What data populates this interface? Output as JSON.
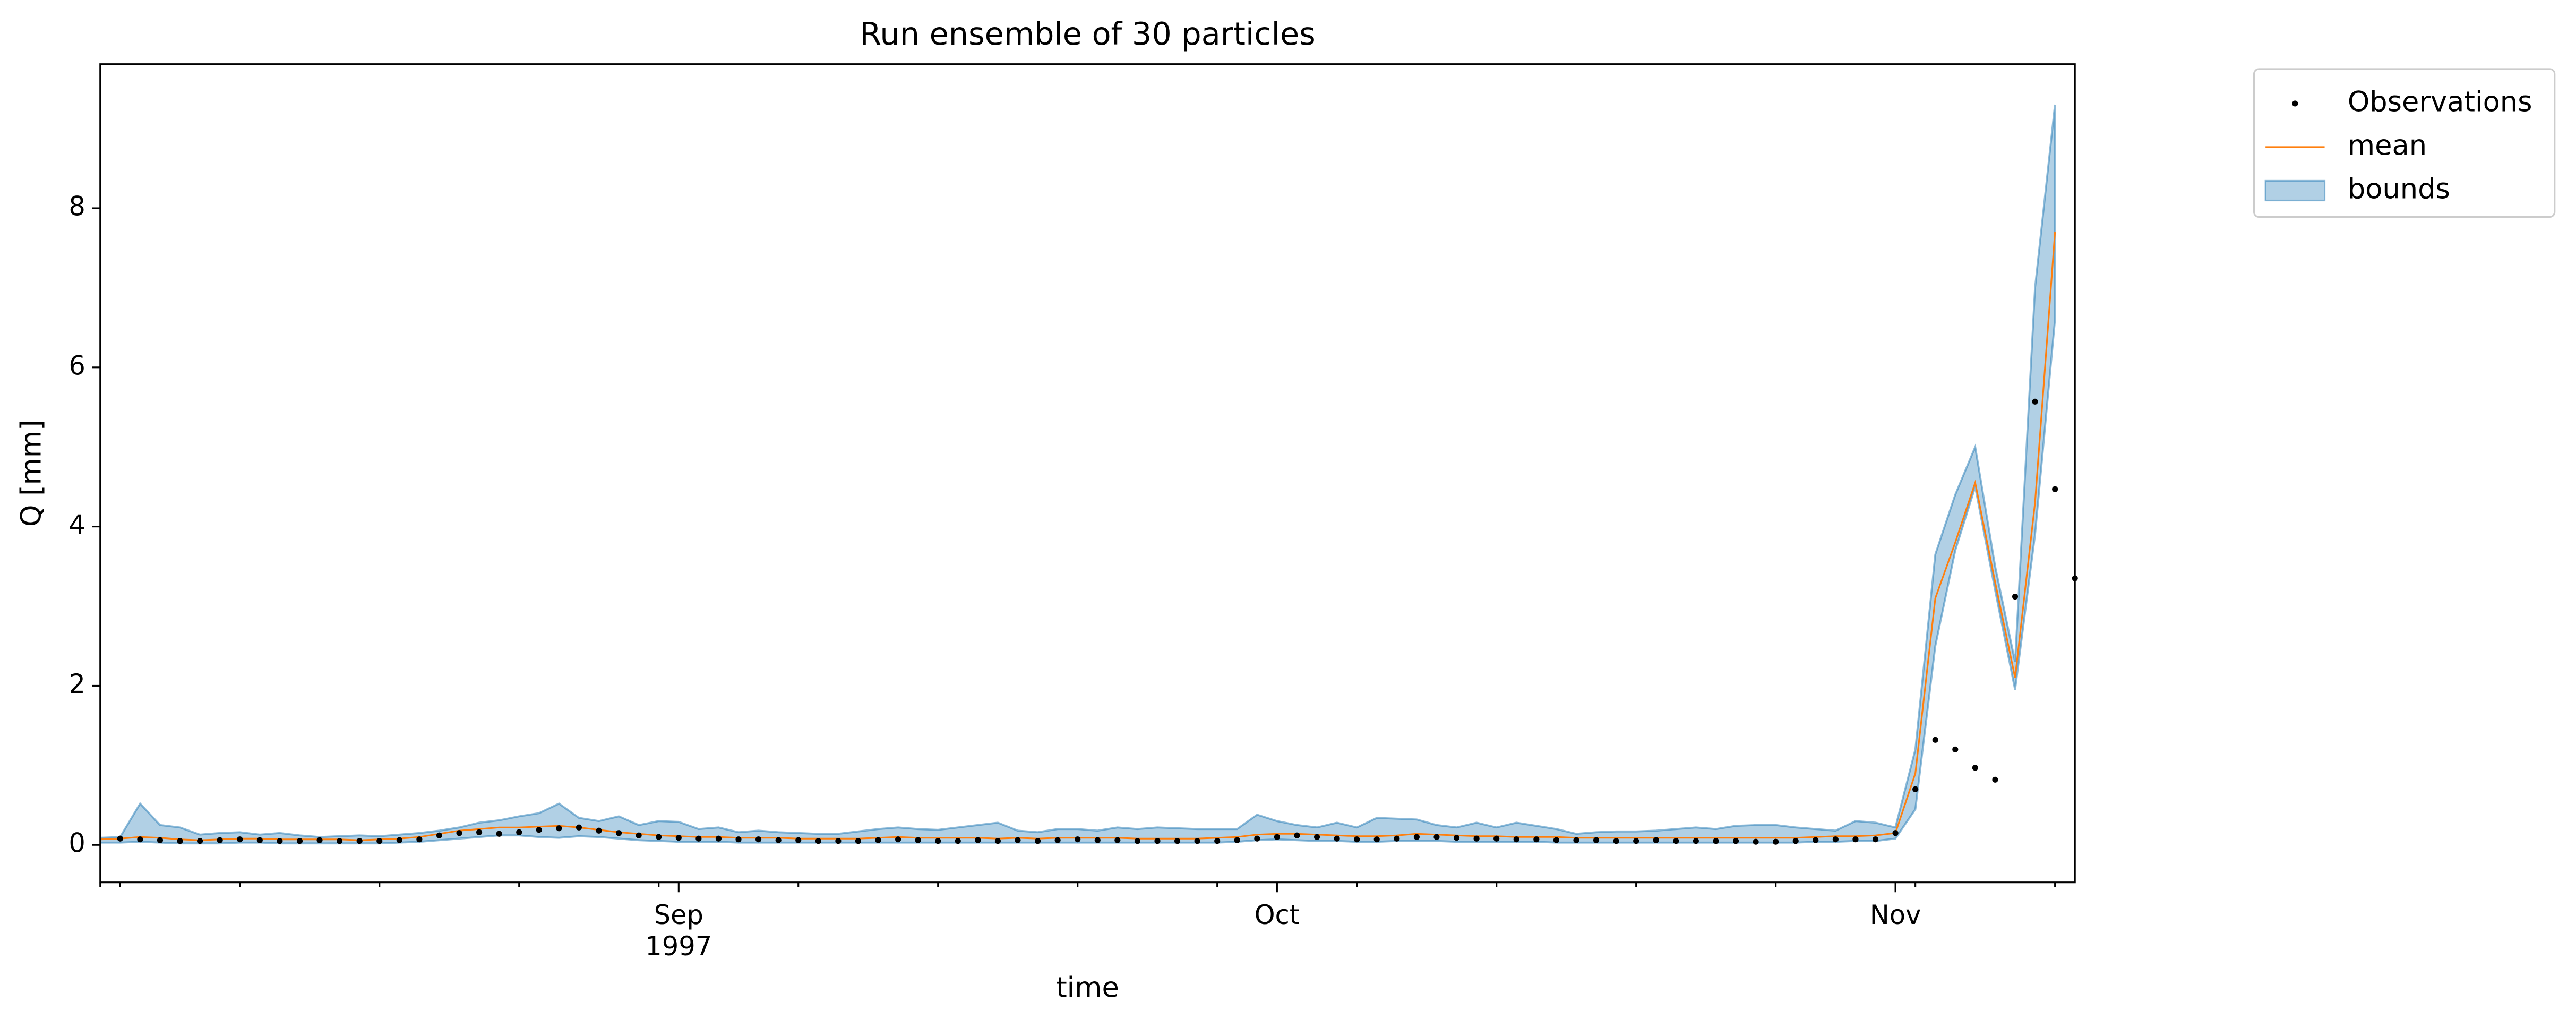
{
  "chart_data": {
    "type": "line",
    "title": "Run ensemble of 30 particles",
    "x_label": "time",
    "y_label": "Q [mm]",
    "categories": [
      null,
      null,
      null,
      null,
      null,
      null,
      null,
      null,
      null,
      null,
      null,
      null,
      null,
      null,
      null,
      null,
      null,
      null,
      null,
      null,
      null,
      null,
      null,
      null,
      null,
      null,
      null,
      null,
      null,
      "Sep",
      null,
      null,
      null,
      null,
      null,
      null,
      null,
      null,
      null,
      null,
      null,
      null,
      null,
      null,
      null,
      null,
      null,
      null,
      null,
      null,
      null,
      null,
      null,
      null,
      null,
      null,
      null,
      null,
      null,
      "Oct",
      null,
      null,
      null,
      null,
      null,
      null,
      null,
      null,
      null,
      null,
      null,
      null,
      null,
      null,
      null,
      null,
      null,
      null,
      null,
      null,
      null,
      null,
      null,
      null,
      null,
      null,
      null,
      null,
      null,
      null,
      "Nov",
      null,
      null,
      null,
      null,
      null,
      null,
      null,
      null,
      null
    ],
    "year_label": "1997",
    "ylim": [
      -0.47,
      9.81
    ],
    "yticks": [
      0,
      2,
      4,
      6,
      8
    ],
    "legend": "outside upper right",
    "series": [
      {
        "name": "Observations",
        "color": "#000000",
        "style": "dots",
        "values": [
          null,
          0.08,
          0.07,
          0.06,
          0.05,
          0.05,
          0.06,
          0.07,
          0.06,
          0.05,
          0.05,
          0.06,
          0.05,
          0.05,
          0.05,
          0.06,
          0.07,
          0.12,
          0.15,
          0.16,
          0.14,
          0.16,
          0.19,
          0.21,
          0.22,
          0.18,
          0.15,
          0.12,
          0.1,
          0.09,
          0.08,
          0.08,
          0.07,
          0.07,
          0.06,
          0.06,
          0.05,
          0.05,
          0.05,
          0.06,
          0.07,
          0.06,
          0.05,
          0.05,
          0.06,
          0.05,
          0.06,
          0.05,
          0.06,
          0.07,
          0.06,
          0.06,
          0.05,
          0.05,
          0.05,
          0.05,
          0.05,
          0.06,
          0.08,
          0.1,
          0.12,
          0.1,
          0.08,
          0.07,
          0.07,
          0.08,
          0.1,
          0.1,
          0.09,
          0.08,
          0.08,
          0.07,
          0.07,
          0.06,
          0.06,
          0.06,
          0.05,
          0.05,
          0.06,
          0.05,
          0.05,
          0.05,
          0.05,
          0.04,
          0.04,
          0.05,
          0.06,
          0.07,
          0.07,
          0.07,
          0.15,
          0.7,
          1.32,
          1.2,
          0.97,
          0.82,
          3.12,
          5.57,
          4.47,
          3.35
        ]
      },
      {
        "name": "mean",
        "color": "#ff7f0e",
        "style": "line",
        "values": [
          0.07,
          0.08,
          0.1,
          0.09,
          0.07,
          0.06,
          0.07,
          0.08,
          0.08,
          0.07,
          0.07,
          0.07,
          0.07,
          0.06,
          0.07,
          0.08,
          0.1,
          0.14,
          0.18,
          0.2,
          0.22,
          0.22,
          0.23,
          0.24,
          0.22,
          0.19,
          0.16,
          0.14,
          0.12,
          0.11,
          0.1,
          0.1,
          0.09,
          0.09,
          0.09,
          0.08,
          0.08,
          0.08,
          0.08,
          0.09,
          0.1,
          0.09,
          0.09,
          0.09,
          0.09,
          0.08,
          0.09,
          0.08,
          0.09,
          0.09,
          0.09,
          0.09,
          0.08,
          0.08,
          0.08,
          0.08,
          0.09,
          0.1,
          0.13,
          0.14,
          0.14,
          0.13,
          0.12,
          0.11,
          0.11,
          0.12,
          0.14,
          0.13,
          0.12,
          0.11,
          0.11,
          0.1,
          0.1,
          0.1,
          0.09,
          0.09,
          0.09,
          0.09,
          0.09,
          0.09,
          0.09,
          0.09,
          0.09,
          0.09,
          0.09,
          0.09,
          0.1,
          0.11,
          0.11,
          0.12,
          0.15,
          0.9,
          3.1,
          3.8,
          4.55,
          3.3,
          2.1,
          4.3,
          7.7,
          null
        ]
      },
      {
        "name": "bounds",
        "color": "#1f77b4",
        "style": "band",
        "lower": [
          0.03,
          0.03,
          0.04,
          0.03,
          0.02,
          0.02,
          0.02,
          0.03,
          0.03,
          0.02,
          0.02,
          0.02,
          0.02,
          0.02,
          0.02,
          0.03,
          0.04,
          0.06,
          0.08,
          0.1,
          0.12,
          0.12,
          0.1,
          0.09,
          0.11,
          0.1,
          0.08,
          0.06,
          0.05,
          0.04,
          0.04,
          0.04,
          0.03,
          0.03,
          0.03,
          0.03,
          0.03,
          0.03,
          0.03,
          0.03,
          0.03,
          0.03,
          0.03,
          0.03,
          0.03,
          0.03,
          0.03,
          0.03,
          0.03,
          0.03,
          0.03,
          0.03,
          0.03,
          0.03,
          0.03,
          0.03,
          0.03,
          0.04,
          0.06,
          0.07,
          0.06,
          0.05,
          0.05,
          0.04,
          0.04,
          0.05,
          0.05,
          0.05,
          0.04,
          0.04,
          0.04,
          0.04,
          0.04,
          0.03,
          0.03,
          0.03,
          0.03,
          0.03,
          0.03,
          0.03,
          0.03,
          0.03,
          0.03,
          0.03,
          0.03,
          0.03,
          0.04,
          0.04,
          0.05,
          0.05,
          0.08,
          0.45,
          2.5,
          3.7,
          4.5,
          3.2,
          1.95,
          3.9,
          6.6,
          null
        ],
        "upper": [
          0.09,
          0.1,
          0.52,
          0.25,
          0.22,
          0.13,
          0.15,
          0.16,
          0.13,
          0.15,
          0.12,
          0.1,
          0.11,
          0.12,
          0.11,
          0.13,
          0.15,
          0.18,
          0.22,
          0.28,
          0.31,
          0.36,
          0.4,
          0.52,
          0.34,
          0.3,
          0.36,
          0.25,
          0.3,
          0.29,
          0.2,
          0.22,
          0.16,
          0.18,
          0.16,
          0.15,
          0.14,
          0.14,
          0.17,
          0.2,
          0.22,
          0.2,
          0.19,
          0.22,
          0.25,
          0.28,
          0.18,
          0.16,
          0.2,
          0.2,
          0.18,
          0.22,
          0.2,
          0.22,
          0.21,
          0.2,
          0.2,
          0.2,
          0.38,
          0.3,
          0.25,
          0.22,
          0.28,
          0.22,
          0.34,
          0.33,
          0.32,
          0.25,
          0.22,
          0.28,
          0.22,
          0.28,
          0.24,
          0.2,
          0.14,
          0.16,
          0.17,
          0.17,
          0.18,
          0.2,
          0.22,
          0.2,
          0.24,
          0.25,
          0.25,
          0.22,
          0.2,
          0.18,
          0.3,
          0.28,
          0.22,
          1.2,
          3.65,
          4.4,
          5.0,
          3.5,
          2.3,
          7.0,
          9.3,
          null
        ]
      }
    ]
  }
}
